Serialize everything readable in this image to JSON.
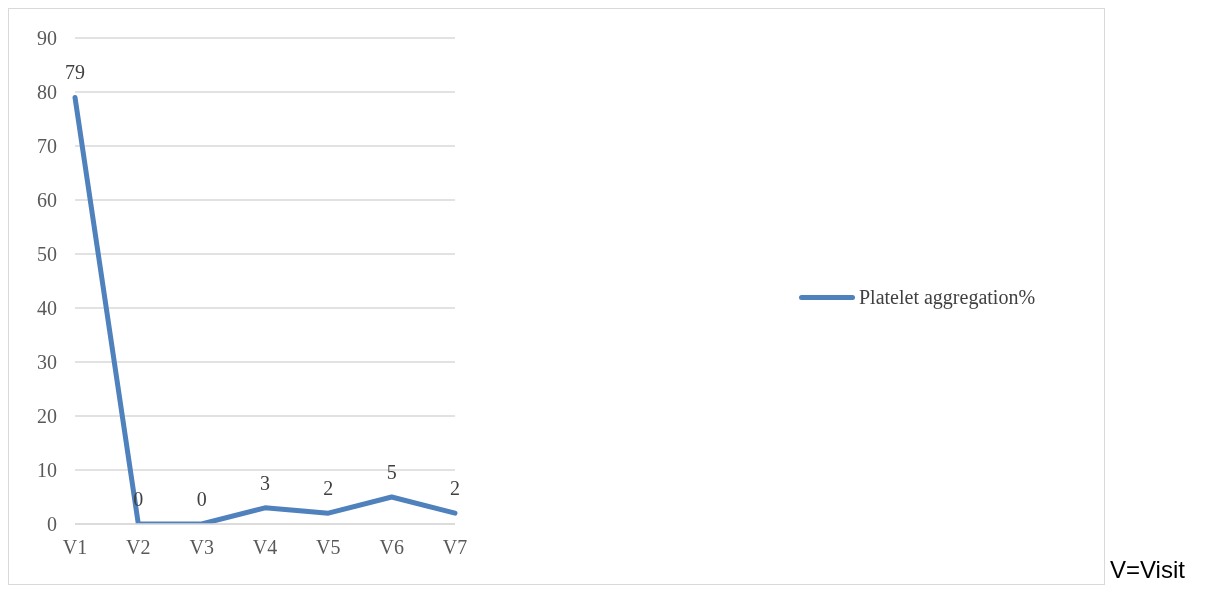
{
  "chart_data": {
    "type": "line",
    "categories": [
      "V1",
      "V2",
      "V3",
      "V4",
      "V5",
      "V6",
      "V7"
    ],
    "series": [
      {
        "name": "Platelet aggregation%",
        "color": "#4f81bd",
        "values": [
          79,
          0,
          0,
          3,
          2,
          5,
          2
        ]
      }
    ],
    "ylim": [
      0,
      90
    ],
    "yticks": [
      0,
      10,
      20,
      30,
      40,
      50,
      60,
      70,
      80,
      90
    ],
    "grid": "y",
    "legend": "right",
    "marker": "none",
    "line_style": "solid",
    "data_labels": true,
    "annotations": [
      "V=Visit"
    ]
  }
}
